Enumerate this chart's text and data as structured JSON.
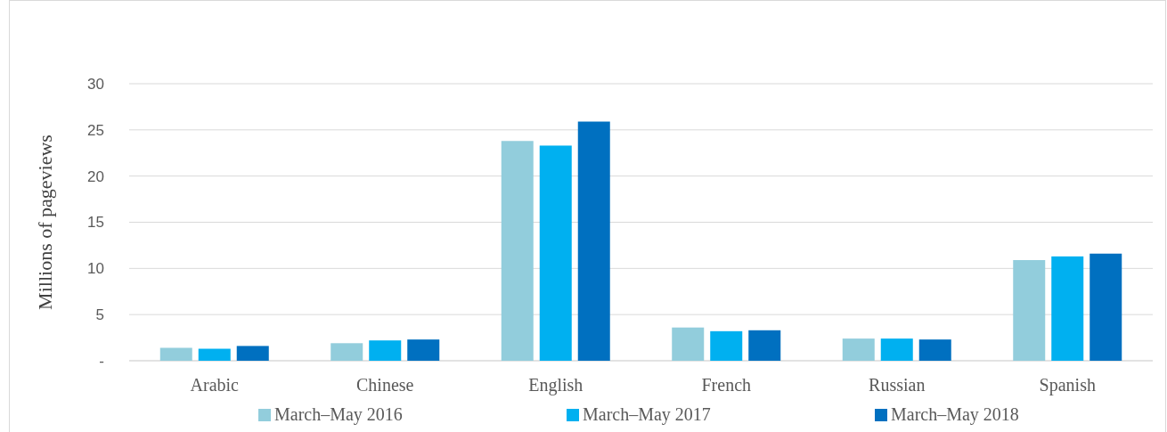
{
  "chart_data": {
    "type": "bar",
    "ylabel": "Millions of pageviews",
    "categories": [
      "Arabic",
      "Chinese",
      "English",
      "French",
      "Russian",
      "Spanish"
    ],
    "series": [
      {
        "name": "March–May 2016",
        "color": "#92cddc",
        "values": [
          1.4,
          1.9,
          23.8,
          3.6,
          2.4,
          10.9
        ]
      },
      {
        "name": "March–May 2017",
        "color": "#00b0f0",
        "values": [
          1.3,
          2.2,
          23.3,
          3.2,
          2.4,
          11.3
        ]
      },
      {
        "name": "March–May 2018",
        "color": "#0070c0",
        "values": [
          1.6,
          2.3,
          25.9,
          3.3,
          2.3,
          11.6
        ]
      }
    ],
    "ylim": [
      0,
      30
    ],
    "yticks": [
      {
        "value": 0,
        "label": "-"
      },
      5,
      10,
      15,
      20,
      25,
      30
    ],
    "grid": "y",
    "legend": "bottom"
  }
}
